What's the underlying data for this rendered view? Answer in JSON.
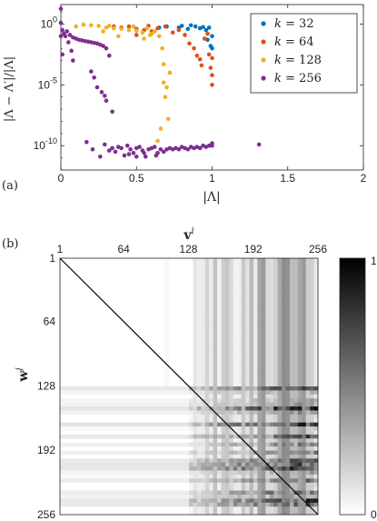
{
  "chart_data": [
    {
      "panel": "(a)",
      "type": "scatter",
      "xlabel": "|Λ|",
      "ylabel": "|Λ − Λ′|/|Λ|",
      "xlim": [
        0,
        2
      ],
      "yscale": "log",
      "ylim_log10": [
        -12,
        1.6
      ],
      "xticks": [
        "0",
        "0.5",
        "1",
        "1.5",
        "2"
      ],
      "yticks": [
        {
          "base": "10",
          "exp": "0",
          "log": 0
        },
        {
          "base": "10",
          "exp": "-5",
          "log": -5
        },
        {
          "base": "10",
          "exp": "-10",
          "log": -10
        }
      ],
      "legend_position": "top-right",
      "series": [
        {
          "name": "k = 32",
          "k": "k",
          "eq": " = 32",
          "color": "#0072BD",
          "points": [
            [
              0.86,
              -0.1
            ],
            [
              0.89,
              -0.2
            ],
            [
              0.92,
              -0.35
            ],
            [
              0.94,
              -0.25
            ],
            [
              0.96,
              -0.5
            ],
            [
              0.98,
              -0.3
            ],
            [
              1.0,
              -1.0
            ],
            [
              0.97,
              -1.3
            ],
            [
              0.99,
              -1.8
            ],
            [
              1.0,
              -2.0
            ],
            [
              0.8,
              -0.15
            ],
            [
              0.84,
              -0.4
            ],
            [
              0.7,
              -0.2
            ],
            [
              0.65,
              -0.3
            ],
            [
              0.78,
              -0.3
            ]
          ]
        },
        {
          "name": "k = 64",
          "k": "k",
          "eq": " = 64",
          "color": "#D95319",
          "points": [
            [
              0.4,
              -0.3
            ],
            [
              0.45,
              -0.2
            ],
            [
              0.5,
              -0.4
            ],
            [
              0.55,
              -0.5
            ],
            [
              0.6,
              -0.6
            ],
            [
              0.64,
              -0.35
            ],
            [
              0.69,
              -0.2
            ],
            [
              0.74,
              -0.7
            ],
            [
              0.78,
              -0.5
            ],
            [
              0.82,
              -0.9
            ],
            [
              0.85,
              -1.6
            ],
            [
              0.88,
              -2.0
            ],
            [
              0.9,
              -2.6
            ],
            [
              0.92,
              -2.9
            ],
            [
              0.95,
              -1.2
            ],
            [
              0.98,
              -2.5
            ],
            [
              1.0,
              -2.8
            ],
            [
              1.0,
              -4.2
            ],
            [
              0.99,
              -3.6
            ],
            [
              1.0,
              -5.0
            ],
            [
              0.97,
              -0.8
            ],
            [
              0.5,
              -0.9
            ],
            [
              0.35,
              -0.2
            ],
            [
              0.58,
              -0.15
            ],
            [
              0.93,
              -3.4
            ]
          ]
        },
        {
          "name": "k = 128",
          "k": "k",
          "eq": " = 128",
          "color": "#EDB120",
          "points": [
            [
              0.15,
              -0.05
            ],
            [
              0.2,
              -0.1
            ],
            [
              0.25,
              -0.15
            ],
            [
              0.3,
              -0.3
            ],
            [
              0.35,
              -0.35
            ],
            [
              0.4,
              -0.4
            ],
            [
              0.45,
              -0.5
            ],
            [
              0.5,
              -0.55
            ],
            [
              0.54,
              -0.7
            ],
            [
              0.57,
              -0.35
            ],
            [
              0.6,
              -0.8
            ],
            [
              0.62,
              -0.6
            ],
            [
              0.65,
              -1.0
            ],
            [
              0.67,
              -2.0
            ],
            [
              0.68,
              -3.3
            ],
            [
              0.68,
              -4.8
            ],
            [
              0.7,
              -5.2
            ],
            [
              0.69,
              -6.0
            ],
            [
              0.71,
              -7.8
            ],
            [
              0.66,
              -8.6
            ],
            [
              0.64,
              -9.6
            ],
            [
              0.72,
              -4.0
            ],
            [
              0.59,
              -0.9
            ],
            [
              0.55,
              -1.2
            ],
            [
              0.28,
              -0.6
            ],
            [
              0.38,
              -1.0
            ],
            [
              0.48,
              -0.2
            ],
            [
              0.32,
              -0.15
            ],
            [
              0.1,
              -0.2
            ]
          ]
        },
        {
          "name": "k = 256",
          "k": "k",
          "eq": " = 256",
          "color": "#7E2F8E",
          "points": [
            [
              0.0,
              1.25
            ],
            [
              0.0,
              0.1
            ],
            [
              0.0,
              -1.0
            ],
            [
              0.01,
              -2.5
            ],
            [
              0.01,
              -0.5
            ],
            [
              0.02,
              -0.8
            ],
            [
              0.03,
              -1.0
            ],
            [
              0.04,
              -0.6
            ],
            [
              0.05,
              -1.5
            ],
            [
              0.06,
              -0.9
            ],
            [
              0.07,
              -2.2
            ],
            [
              0.08,
              -3.0
            ],
            [
              0.08,
              -1.1
            ],
            [
              0.1,
              -1.2
            ],
            [
              0.12,
              -1.3
            ],
            [
              0.14,
              -1.35
            ],
            [
              0.16,
              -1.4
            ],
            [
              0.18,
              -1.45
            ],
            [
              0.2,
              -1.5
            ],
            [
              0.22,
              -1.55
            ],
            [
              0.24,
              -1.6
            ],
            [
              0.26,
              -1.7
            ],
            [
              0.28,
              -1.8
            ],
            [
              0.3,
              -2.0
            ],
            [
              0.2,
              -3.9
            ],
            [
              0.22,
              -4.4
            ],
            [
              0.24,
              -5.2
            ],
            [
              0.27,
              -5.6
            ],
            [
              0.29,
              -5.9
            ],
            [
              0.3,
              -6.3
            ],
            [
              0.32,
              -2.6
            ],
            [
              0.34,
              -7.2
            ],
            [
              0.17,
              -9.7
            ],
            [
              0.21,
              -10.3
            ],
            [
              0.26,
              -10.9
            ],
            [
              0.29,
              -9.9
            ],
            [
              0.32,
              -10.4
            ],
            [
              0.34,
              -10.2
            ],
            [
              0.36,
              -10.5
            ],
            [
              0.38,
              -10.1
            ],
            [
              0.4,
              -10.2
            ],
            [
              0.42,
              -10.8
            ],
            [
              0.44,
              -10.0
            ],
            [
              0.46,
              -10.3
            ],
            [
              0.48,
              -10.6
            ],
            [
              0.5,
              -10.2
            ],
            [
              0.52,
              -10.1
            ],
            [
              0.54,
              -10.4
            ],
            [
              0.56,
              -10.9
            ],
            [
              0.58,
              -10.3
            ],
            [
              0.6,
              -10.2
            ],
            [
              0.62,
              -10.1
            ],
            [
              0.64,
              -10.6
            ],
            [
              0.66,
              -10.3
            ],
            [
              0.68,
              -10.5
            ],
            [
              0.7,
              -10.3
            ],
            [
              0.72,
              -10.2
            ],
            [
              0.74,
              -10.3
            ],
            [
              0.76,
              -10.2
            ],
            [
              0.78,
              -10.3
            ],
            [
              0.8,
              -10.1
            ],
            [
              0.82,
              -10.2
            ],
            [
              0.84,
              -10.3
            ],
            [
              0.86,
              -10.1
            ],
            [
              0.88,
              -10.2
            ],
            [
              0.9,
              -10.1
            ],
            [
              0.92,
              -10.2
            ],
            [
              0.94,
              -10.0
            ],
            [
              0.96,
              -10.1
            ],
            [
              0.98,
              -10.0
            ],
            [
              1.0,
              -10.0
            ],
            [
              1.0,
              -9.8
            ],
            [
              1.31,
              -9.9
            ],
            [
              0.45,
              -10.7
            ],
            [
              0.55,
              -10.6
            ],
            [
              0.63,
              -10.8
            ],
            [
              0.5,
              -10.9
            ]
          ]
        }
      ]
    },
    {
      "panel": "(b)",
      "type": "heatmap",
      "xlabel": "v",
      "xlabel_sup": "i",
      "ylabel": "w",
      "ylabel_sup": "j",
      "x_range": [
        1,
        256
      ],
      "y_range": [
        1,
        256
      ],
      "xticks": [
        "1",
        "64",
        "128",
        "192",
        "256"
      ],
      "yticks": [
        "1",
        "64",
        "128",
        "192",
        "256"
      ],
      "colorbar": {
        "min": 0,
        "max": 1,
        "ticks": [
          "1",
          "0"
        ],
        "colormap": "gray, white = 0, black = 1"
      },
      "description_pattern": {
        "diagonal_value": 1,
        "dense_block_start": 128
      }
    }
  ]
}
